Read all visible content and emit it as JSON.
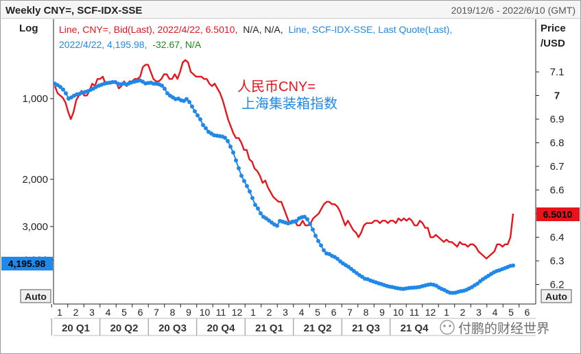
{
  "header": {
    "title": "Weekly CNY=, SCF-IDX-SSE",
    "date_range": "2019/12/6 - 2022/6/10 (GMT)"
  },
  "legend": {
    "line1_red": "Line, CNY=, Bid(Last), 2022/4/22, 6.5010,",
    "line1_black": "N/A, N/A,",
    "line1_blue": "Line, SCF-IDX-SSE, Last Quote(Last),",
    "line2_blue": "2022/4/22, 4,195.98,",
    "line2_green": "-32.67, N/A"
  },
  "annotations": {
    "cn_red": "人民币CNY=",
    "cn_blue": "上海集装箱指数",
    "watermark": "付鹏的财经世界"
  },
  "axis": {
    "left_title": "Log",
    "right_title_1": "Price",
    "right_title_2": "/USD",
    "auto_left": "Auto",
    "auto_right": "Auto",
    "left_last_value": "4,195.98",
    "right_last_value": "6.5010"
  },
  "colors": {
    "cny": "#e8141c",
    "scfi": "#1f88e8",
    "green": "#1a8a1a",
    "axis": "#222222",
    "grid": "#d9d9d9"
  },
  "chart_data": {
    "type": "line",
    "x_month_labels": [
      "1",
      "2",
      "3",
      "4",
      "5",
      "6",
      "7",
      "8",
      "9",
      "10",
      "11",
      "12",
      "1",
      "2",
      "3",
      "4",
      "5",
      "6",
      "7",
      "8",
      "9",
      "10",
      "11",
      "12",
      "1",
      "2",
      "3",
      "4",
      "5",
      "6"
    ],
    "x_quarter_labels": [
      "20 Q1",
      "20 Q2",
      "20 Q3",
      "20 Q4",
      "21 Q1",
      "21 Q2",
      "21 Q3",
      "21 Q4"
    ],
    "left_axis": {
      "scale": "reverse-log",
      "ticks": [
        "1,000",
        "2,000",
        "3,000",
        "4,000"
      ]
    },
    "right_axis": {
      "ticks": [
        "7.1",
        "7",
        "6.9",
        "6.8",
        "6.7",
        "6.6",
        "6.5",
        "6.4",
        "6.3",
        "6.2"
      ],
      "ylim": [
        6.1,
        7.15
      ]
    },
    "series": [
      {
        "name": "CNY=",
        "axis": "right",
        "values": [
          7.04,
          7.01,
          7.0,
          6.99,
          6.97,
          6.93,
          6.9,
          6.93,
          6.98,
          7.0,
          7.02,
          7.0,
          7.0,
          7.02,
          7.05,
          7.04,
          7.07,
          7.07,
          7.08,
          7.05,
          7.05,
          7.05,
          7.06,
          7.06,
          7.03,
          7.04,
          7.06,
          7.04,
          7.06,
          7.06,
          7.07,
          7.07,
          7.08,
          7.12,
          7.13,
          7.13,
          7.1,
          7.07,
          7.06,
          7.06,
          7.07,
          7.09,
          7.09,
          7.07,
          7.07,
          7.09,
          7.07,
          7.1,
          7.14,
          7.15,
          7.14,
          7.1,
          7.09,
          7.08,
          7.08,
          7.08,
          7.07,
          7.07,
          7.05,
          7.04,
          7.05,
          7.03,
          7.01,
          6.98,
          6.94,
          6.9,
          6.87,
          6.84,
          6.82,
          6.82,
          6.8,
          6.77,
          6.77,
          6.73,
          6.72,
          6.69,
          6.68,
          6.66,
          6.63,
          6.64,
          6.61,
          6.59,
          6.57,
          6.56,
          6.55,
          6.55,
          6.52,
          6.49,
          6.46,
          6.47,
          6.47,
          6.45,
          6.45,
          6.47,
          6.45,
          6.45,
          6.46,
          6.48,
          6.49,
          6.5,
          6.52,
          6.54,
          6.55,
          6.55,
          6.54,
          6.54,
          6.53,
          6.51,
          6.48,
          6.45,
          6.47,
          6.45,
          6.43,
          6.42,
          6.4,
          6.42,
          6.45,
          6.46,
          6.46,
          6.46,
          6.47,
          6.47,
          6.46,
          6.47,
          6.47,
          6.46,
          6.47,
          6.47,
          6.46,
          6.48,
          6.47,
          6.48,
          6.47,
          6.48,
          6.47,
          6.45,
          6.45,
          6.47,
          6.46,
          6.44,
          6.44,
          6.4,
          6.4,
          6.41,
          6.4,
          6.39,
          6.38,
          6.39,
          6.38,
          6.38,
          6.37,
          6.36,
          6.38,
          6.37,
          6.37,
          6.36,
          6.37,
          6.37,
          6.36,
          6.34,
          6.33,
          6.32,
          6.31,
          6.32,
          6.33,
          6.34,
          6.37,
          6.37,
          6.36,
          6.37,
          6.37,
          6.4,
          6.5
        ]
      },
      {
        "name": "SCF-IDX-SSE",
        "axis": "left",
        "values": [
          880,
          890,
          905,
          925,
          955,
          1000,
          990,
          975,
          965,
          960,
          950,
          945,
          938,
          928,
          918,
          905,
          895,
          888,
          880,
          875,
          872,
          868,
          868,
          880,
          885,
          878,
          885,
          878,
          870,
          865,
          860,
          855,
          865,
          878,
          875,
          872,
          880,
          880,
          885,
          895,
          918,
          955,
          975,
          990,
          1005,
          1000,
          1015,
          1020,
          1005,
          1030,
          1070,
          1115,
          1155,
          1195,
          1255,
          1290,
          1330,
          1350,
          1370,
          1375,
          1380,
          1385,
          1400,
          1440,
          1510,
          1590,
          1700,
          1820,
          1940,
          2030,
          2120,
          2220,
          2350,
          2490,
          2570,
          2680,
          2760,
          2800,
          2850,
          2900,
          2950,
          2980,
          2860,
          2880,
          2900,
          2920,
          2900,
          2880,
          2860,
          2800,
          2770,
          2760,
          2820,
          2940,
          3080,
          3250,
          3400,
          3530,
          3680,
          3780,
          3800,
          3860,
          3900,
          3960,
          4050,
          4120,
          4180,
          4240,
          4320,
          4400,
          4480,
          4560,
          4620,
          4700,
          4720,
          4770,
          4810,
          4850,
          4890,
          4920,
          4960,
          5000,
          5030,
          5050,
          5080,
          5100,
          5120,
          5130,
          5110,
          5090,
          5080,
          5070,
          5060,
          5040,
          5010,
          4980,
          4950,
          4930,
          4950,
          4990,
          5070,
          5130,
          5180,
          5250,
          5300,
          5310,
          5300,
          5260,
          5230,
          5210,
          5170,
          5110,
          5050,
          4970,
          4900,
          4800,
          4720,
          4650,
          4580,
          4510,
          4450,
          4400,
          4370,
          4330,
          4290,
          4250,
          4210,
          4196
        ]
      }
    ]
  }
}
